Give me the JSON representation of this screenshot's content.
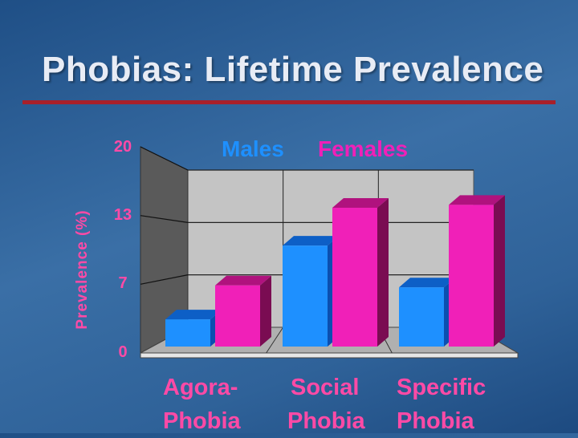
{
  "title": "Phobias: Lifetime Prevalence",
  "colors": {
    "males": "#1e90ff",
    "females": "#f020b8",
    "accent": "#a8202a",
    "label": "#ff4aa6"
  },
  "chart_data": {
    "type": "bar",
    "title": "Phobias: Lifetime Prevalence",
    "ylabel": "Prevalence (%)",
    "xlabel": "",
    "ylim": [
      0,
      20
    ],
    "yticks": [
      "0",
      "7",
      "13",
      "20"
    ],
    "yticks_values": [
      0,
      6.67,
      13.33,
      20
    ],
    "grid": true,
    "legend_position": "top",
    "categories": [
      "Agora-\nPhobia",
      "Social\nPhobia",
      "Specific\nPhobia"
    ],
    "categories_lines": [
      [
        "Agora-",
        "Phobia"
      ],
      [
        "Social",
        "Phobia"
      ],
      [
        "Specific",
        "Phobia"
      ]
    ],
    "series": [
      {
        "name": "Males",
        "values": [
          2.8,
          10.4,
          6.1
        ]
      },
      {
        "name": "Females",
        "values": [
          6.3,
          14.3,
          14.6
        ]
      }
    ]
  }
}
